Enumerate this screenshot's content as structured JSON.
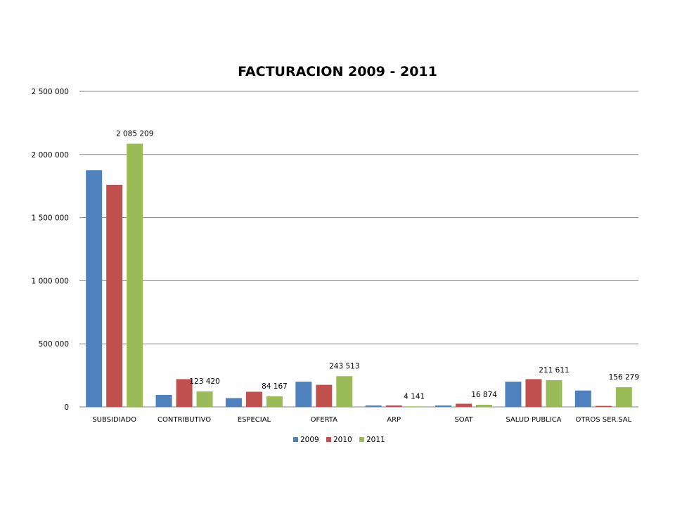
{
  "chart_data": {
    "type": "bar",
    "title": "FACTURACION 2009 - 2011",
    "categories": [
      "SUBSIDIADO",
      "CONTRIBUTIVO",
      "ESPECIAL",
      "OFERTA",
      "ARP",
      "SOAT",
      "SALUD PUBLICA",
      "OTROS SER.SAL"
    ],
    "series": [
      {
        "name": "2009",
        "color": "#4F81BD",
        "values": [
          1875000,
          95000,
          70000,
          200000,
          12000,
          12000,
          200000,
          130000
        ]
      },
      {
        "name": "2010",
        "color": "#C0504D",
        "values": [
          1760000,
          220000,
          120000,
          175000,
          12000,
          25000,
          220000,
          8000
        ]
      },
      {
        "name": "2011",
        "color": "#9BBB59",
        "values": [
          2085209,
          123420,
          84167,
          243513,
          4141,
          16874,
          211611,
          156279
        ]
      }
    ],
    "data_labels": [
      {
        "category": "SUBSIDIADO",
        "series": "2011",
        "text": "2 085 209"
      },
      {
        "category": "CONTRIBUTIVO",
        "series": "2011",
        "text": "123 420"
      },
      {
        "category": "ESPECIAL",
        "series": "2011",
        "text": "84 167"
      },
      {
        "category": "OFERTA",
        "series": "2011",
        "text": "243 513"
      },
      {
        "category": "ARP",
        "series": "2011",
        "text": "4 141"
      },
      {
        "category": "SOAT",
        "series": "2011",
        "text": "16 874"
      },
      {
        "category": "SALUD PUBLICA",
        "series": "2011",
        "text": "211 611"
      },
      {
        "category": "OTROS SER.SAL",
        "series": "2011",
        "text": "156 279"
      }
    ],
    "yticks": [
      {
        "value": 0,
        "label": "0"
      },
      {
        "value": 500000,
        "label": "500 000"
      },
      {
        "value": 1000000,
        "label": "1 000 000"
      },
      {
        "value": 1500000,
        "label": "1 500 000"
      },
      {
        "value": 2000000,
        "label": "2 000 000"
      },
      {
        "value": 2500000,
        "label": "2 500 000"
      }
    ],
    "ylim": [
      0,
      2500000
    ],
    "grid": true,
    "legend": "bottom",
    "xlabel": "",
    "ylabel": ""
  }
}
